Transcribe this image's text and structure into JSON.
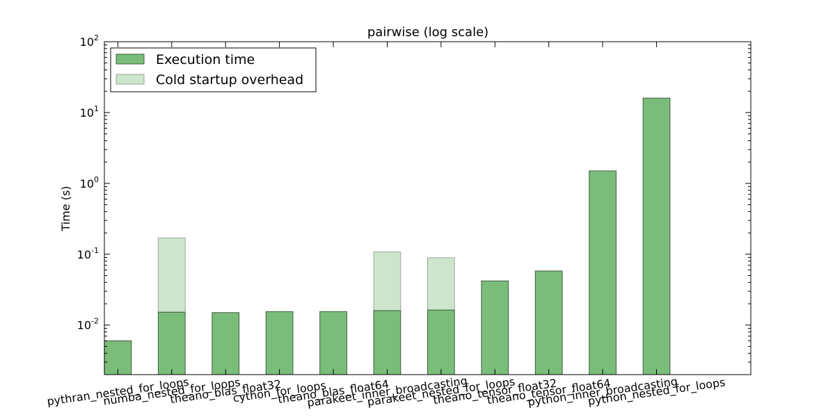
{
  "chart_data": {
    "type": "bar",
    "title": "pairwise (log scale)",
    "xlabel": "",
    "ylabel": "Time (s)",
    "yscale": "log",
    "ylim": [
      0.002,
      100
    ],
    "grid": false,
    "legend_position": "top-left",
    "categories": [
      "pythran_nested_for_loops",
      "numba_nested_for_loops",
      "theano_blas_float32",
      "cython_for_loops",
      "theano_blas_float64",
      "parakeet_inner_broadcasting",
      "parakeet_nested_for_loops",
      "theano_tensor_float32",
      "theano_tensor_float64",
      "python_inner_broadcasting",
      "python_nested_for_loops"
    ],
    "y_ticks": [
      {
        "base": "10",
        "exp": "-2",
        "value": 0.01
      },
      {
        "base": "10",
        "exp": "-1",
        "value": 0.1
      },
      {
        "base": "10",
        "exp": "0",
        "value": 1
      },
      {
        "base": "10",
        "exp": "1",
        "value": 10
      },
      {
        "base": "10",
        "exp": "2",
        "value": 100
      }
    ],
    "series": [
      {
        "name": "Execution time",
        "color": "#7abd7a",
        "values": [
          0.006,
          0.0152,
          0.015,
          0.0155,
          0.0155,
          0.016,
          0.0163,
          0.042,
          0.058,
          1.5,
          16
        ]
      },
      {
        "name": "Cold startup overhead",
        "color": "#cde5cd",
        "stacked": true,
        "values": [
          0,
          0.155,
          0,
          0,
          0,
          0.092,
          0.073,
          0,
          0,
          0,
          0
        ]
      }
    ]
  }
}
